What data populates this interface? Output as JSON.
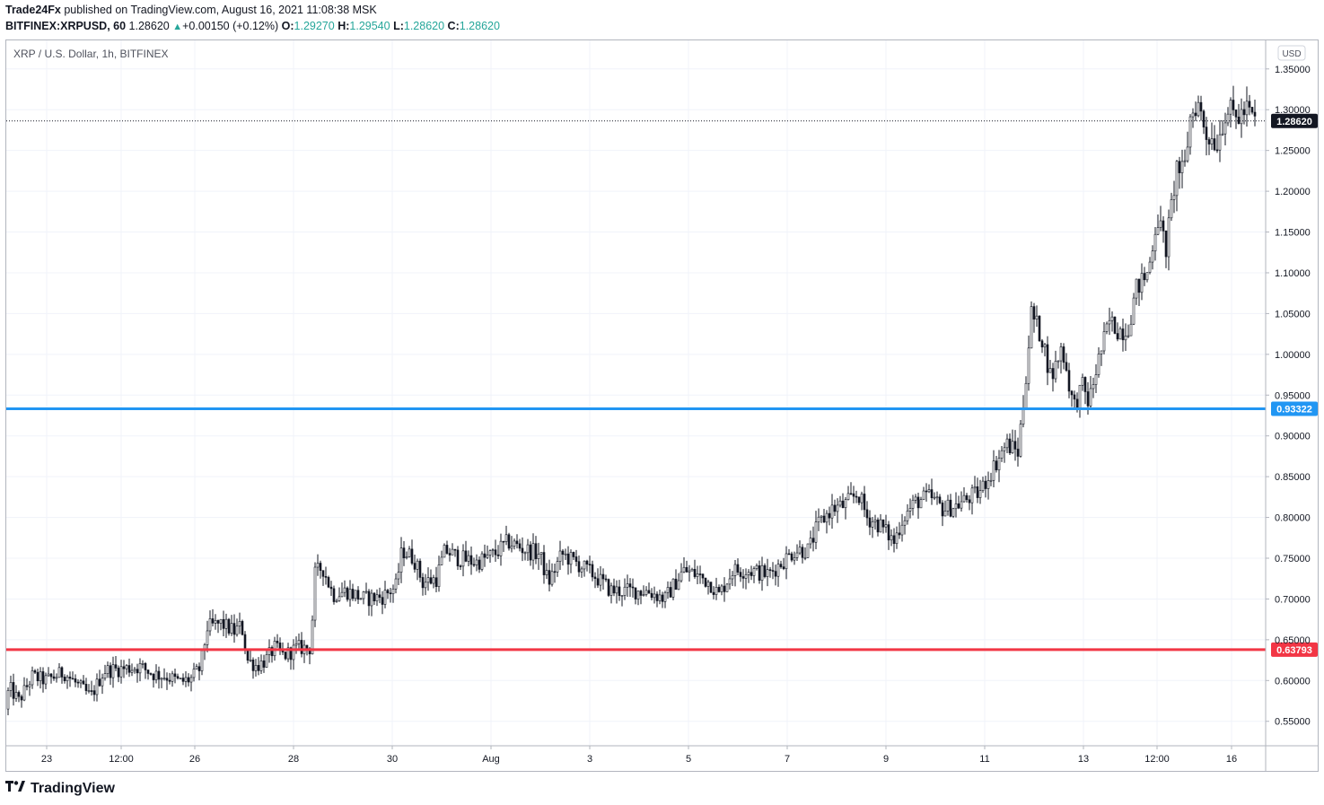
{
  "header": {
    "publisher": "Trade24Fx",
    "published_text": "published on TradingView.com, August 16, 2021 11:08:38 MSK",
    "symbol": "BITFINEX:XRPUSD, 60",
    "last": "1.28620",
    "change_icon": "triangle-up-icon",
    "change": "+0.00150 (+0.12%)",
    "o_label": "O:",
    "o": "1.29270",
    "h_label": "H:",
    "h": "1.29540",
    "l_label": "L:",
    "l": "1.28620",
    "c_label": "C:",
    "c": "1.28620"
  },
  "footer": {
    "brand": "TradingView",
    "logo_icon": "tradingview-logo-icon"
  },
  "colors": {
    "grid": "#f0f3fa",
    "candle": "#131722",
    "blue_line": "#2196f3",
    "red_line": "#f23645",
    "axis_text": "#131722"
  },
  "chart_data": {
    "type": "candlestick",
    "title": "XRP / U.S. Dollar, 1h, BITFINEX",
    "currency": "USD",
    "ylim": [
      0.52,
      1.385
    ],
    "y_ticks": [
      "1.35000",
      "1.30000",
      "1.25000",
      "1.20000",
      "1.15000",
      "1.10000",
      "1.05000",
      "1.00000",
      "0.95000",
      "0.90000",
      "0.85000",
      "0.80000",
      "0.75000",
      "0.70000",
      "0.65000",
      "0.60000",
      "0.55000"
    ],
    "x_ticks": [
      "23",
      "12:00",
      "26",
      "28",
      "30",
      "Aug",
      "3",
      "5",
      "7",
      "9",
      "11",
      "13",
      "12:00",
      "16"
    ],
    "horizontal_lines": [
      {
        "name": "resistance-support",
        "value": 0.93322,
        "label": "0.93322",
        "color": "#2196f3"
      },
      {
        "name": "support",
        "value": 0.63793,
        "label": "0.63793",
        "color": "#f23645"
      }
    ],
    "last_price": {
      "value": 1.2862,
      "label": "1.28620"
    },
    "close_path": [
      [
        0,
        0.565
      ],
      [
        10,
        0.59
      ],
      [
        20,
        0.575
      ],
      [
        35,
        0.605
      ],
      [
        50,
        0.6
      ],
      [
        70,
        0.61
      ],
      [
        85,
        0.595
      ],
      [
        100,
        0.58
      ],
      [
        115,
        0.612
      ],
      [
        140,
        0.615
      ],
      [
        155,
        0.617
      ],
      [
        170,
        0.608
      ],
      [
        185,
        0.605
      ],
      [
        200,
        0.598
      ],
      [
        212,
        0.602
      ],
      [
        222,
        0.615
      ],
      [
        230,
        0.665
      ],
      [
        245,
        0.67
      ],
      [
        260,
        0.66
      ],
      [
        268,
        0.668
      ],
      [
        275,
        0.625
      ],
      [
        285,
        0.618
      ],
      [
        295,
        0.625
      ],
      [
        305,
        0.64
      ],
      [
        315,
        0.63
      ],
      [
        330,
        0.64
      ],
      [
        345,
        0.64
      ],
      [
        350,
        0.73
      ],
      [
        358,
        0.74
      ],
      [
        370,
        0.705
      ],
      [
        385,
        0.71
      ],
      [
        405,
        0.7
      ],
      [
        425,
        0.703
      ],
      [
        440,
        0.715
      ],
      [
        447,
        0.76
      ],
      [
        460,
        0.75
      ],
      [
        470,
        0.72
      ],
      [
        485,
        0.725
      ],
      [
        495,
        0.76
      ],
      [
        510,
        0.75
      ],
      [
        530,
        0.745
      ],
      [
        550,
        0.755
      ],
      [
        565,
        0.77
      ],
      [
        585,
        0.76
      ],
      [
        600,
        0.755
      ],
      [
        610,
        0.72
      ],
      [
        625,
        0.755
      ],
      [
        640,
        0.745
      ],
      [
        660,
        0.73
      ],
      [
        680,
        0.71
      ],
      [
        700,
        0.71
      ],
      [
        720,
        0.71
      ],
      [
        740,
        0.7
      ],
      [
        760,
        0.735
      ],
      [
        775,
        0.73
      ],
      [
        790,
        0.72
      ],
      [
        800,
        0.705
      ],
      [
        815,
        0.735
      ],
      [
        835,
        0.735
      ],
      [
        855,
        0.73
      ],
      [
        870,
        0.745
      ],
      [
        885,
        0.76
      ],
      [
        900,
        0.76
      ],
      [
        910,
        0.79
      ],
      [
        925,
        0.81
      ],
      [
        940,
        0.815
      ],
      [
        955,
        0.83
      ],
      [
        965,
        0.8
      ],
      [
        980,
        0.79
      ],
      [
        995,
        0.77
      ],
      [
        1005,
        0.8
      ],
      [
        1020,
        0.82
      ],
      [
        1035,
        0.825
      ],
      [
        1050,
        0.81
      ],
      [
        1065,
        0.815
      ],
      [
        1080,
        0.825
      ],
      [
        1090,
        0.83
      ],
      [
        1105,
        0.86
      ],
      [
        1120,
        0.89
      ],
      [
        1133,
        0.88
      ],
      [
        1140,
        0.95
      ],
      [
        1148,
        1.05
      ],
      [
        1160,
        1.02
      ],
      [
        1170,
        0.97
      ],
      [
        1182,
        1.01
      ],
      [
        1195,
        0.935
      ],
      [
        1205,
        0.96
      ],
      [
        1212,
        0.94
      ],
      [
        1222,
        0.99
      ],
      [
        1235,
        1.04
      ],
      [
        1245,
        1.03
      ],
      [
        1255,
        1.03
      ],
      [
        1265,
        1.08
      ],
      [
        1278,
        1.1
      ],
      [
        1288,
        1.17
      ],
      [
        1298,
        1.13
      ],
      [
        1310,
        1.23
      ],
      [
        1318,
        1.22
      ],
      [
        1325,
        1.29
      ],
      [
        1333,
        1.31
      ],
      [
        1343,
        1.27
      ],
      [
        1355,
        1.26
      ],
      [
        1365,
        1.3
      ],
      [
        1378,
        1.29
      ],
      [
        1388,
        1.3
      ],
      [
        1397,
        1.286
      ]
    ]
  }
}
